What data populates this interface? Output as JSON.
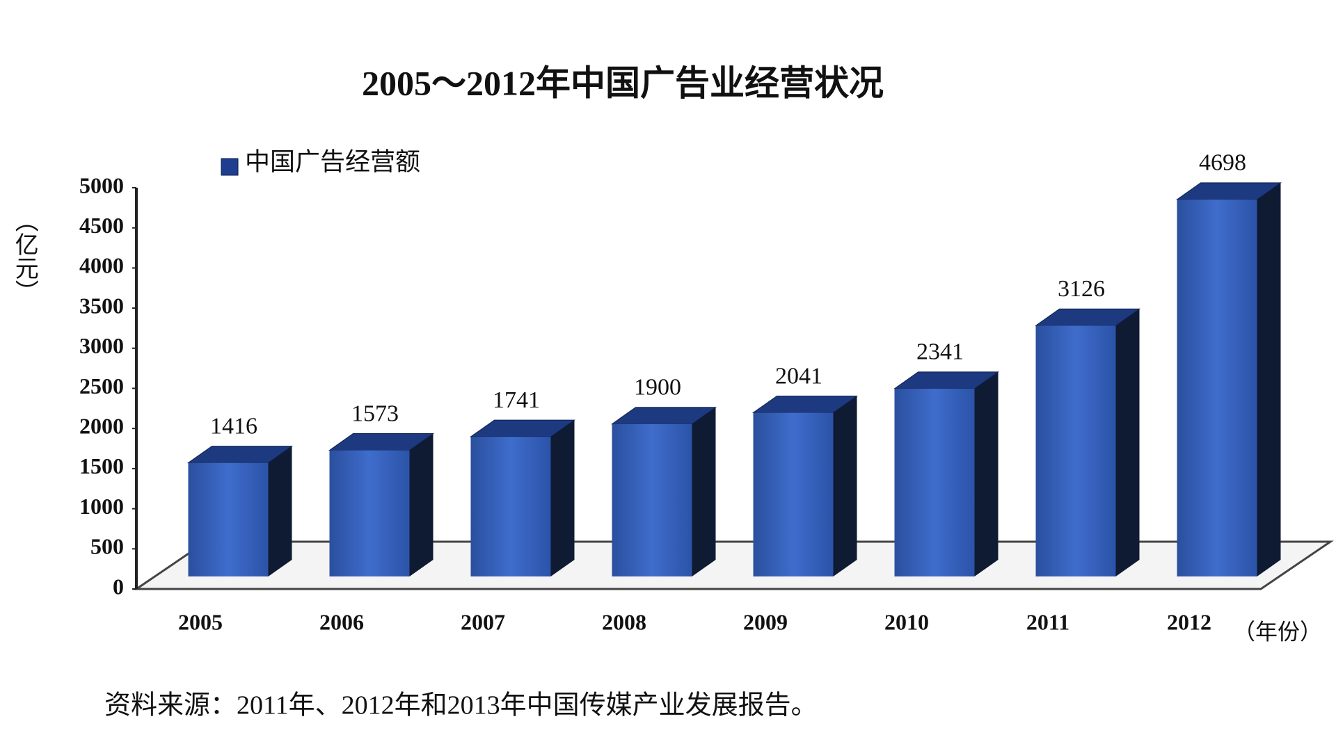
{
  "chart_data": {
    "type": "bar3d",
    "title": "2005～2012年中国广告业经营状况",
    "y_axis_label": "（亿元）",
    "x_axis_label": "（年份）",
    "categories": [
      "2005",
      "2006",
      "2007",
      "2008",
      "2009",
      "2010",
      "2011",
      "2012"
    ],
    "series": [
      {
        "name": "中国广告经营额",
        "color": "#2f5cb8",
        "values": [
          1416,
          1573,
          1741,
          1900,
          2041,
          2341,
          3126,
          4698
        ]
      }
    ],
    "ylim": [
      0,
      5000
    ],
    "yticks": [
      0,
      500,
      1000,
      1500,
      2000,
      2500,
      3000,
      3500,
      4000,
      4500,
      5000
    ],
    "legend": "top-left",
    "source": "资料来源：2011年、2012年和2013年中国传媒产业发展报告。"
  }
}
